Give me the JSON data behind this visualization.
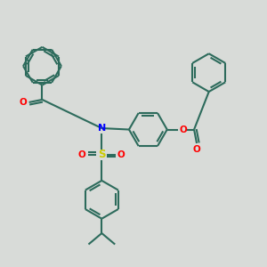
{
  "background_color": "#d8dbd8",
  "bond_color": "#2d6b5c",
  "nitrogen_color": "#0000ff",
  "oxygen_color": "#ff0000",
  "sulfur_color": "#cccc00",
  "line_width": 1.5,
  "fig_width": 3.0,
  "fig_height": 3.0,
  "dpi": 100,
  "xlim": [
    0,
    10
  ],
  "ylim": [
    0,
    10
  ]
}
